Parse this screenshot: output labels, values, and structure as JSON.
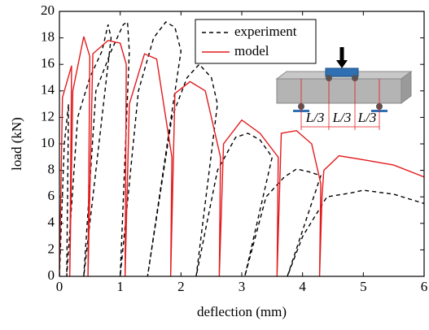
{
  "chart_data": {
    "type": "line",
    "xlabel": "deflection (mm)",
    "ylabel": "load (kN)",
    "xlim": [
      0,
      6
    ],
    "xticks": [
      0,
      1,
      2,
      3,
      4,
      5,
      6
    ],
    "ylim": [
      0,
      20
    ],
    "yticks": [
      0,
      2,
      4,
      6,
      8,
      10,
      12,
      14,
      16,
      18,
      20
    ],
    "legend": "top",
    "annotations": [
      "L/3",
      "L/3",
      "L/3"
    ],
    "series": [
      {
        "name": "experiment",
        "color": "#000000",
        "dash": true,
        "x": [
          0,
          0.08,
          0.15,
          0.12,
          0.3,
          0.5,
          0.7,
          0.8,
          0.85,
          0.4,
          0.6,
          0.85,
          1.05,
          1.12,
          1.15,
          1.0,
          1.3,
          1.55,
          1.75,
          1.9,
          2.0,
          1.45,
          1.85,
          2.1,
          2.3,
          2.5,
          2.6,
          2.25,
          2.6,
          2.9,
          3.1,
          3.3,
          3.5,
          3.05,
          3.4,
          3.7,
          3.9,
          4.1,
          4.3,
          3.75,
          4.0,
          4.4,
          4.8,
          5.0,
          5.5,
          6.0
        ],
        "values": [
          0,
          10,
          13,
          0,
          12,
          15,
          17,
          19,
          18,
          0,
          14,
          17,
          19,
          19.2,
          17,
          0,
          14,
          18,
          19.2,
          18.8,
          17,
          0,
          12,
          15,
          16,
          15,
          13,
          0,
          8,
          10.5,
          10.8,
          10.3,
          9,
          0,
          6,
          7.5,
          8.1,
          7.9,
          7.6,
          0,
          3,
          6,
          6.3,
          6.5,
          6.2,
          5.5
        ]
      },
      {
        "name": "model",
        "color": "#e31a1c",
        "dash": false,
        "x": [
          0,
          0.05,
          0.2,
          0.17,
          0.22,
          0.4,
          0.5,
          0.47,
          0.55,
          0.8,
          1.0,
          1.1,
          1.08,
          1.15,
          1.4,
          1.6,
          1.85,
          1.83,
          1.9,
          2.15,
          2.4,
          2.65,
          2.63,
          2.7,
          3.0,
          3.3,
          3.6,
          3.58,
          3.65,
          3.9,
          4.15,
          4.3,
          4.28,
          4.32,
          4.35,
          4.6,
          5.0,
          5.5,
          6.0
        ],
        "values": [
          0,
          13.5,
          15.9,
          0,
          14,
          18.1,
          16.6,
          0,
          16.8,
          17.8,
          17.6,
          16,
          0,
          13,
          16.8,
          16.4,
          9,
          0,
          13.8,
          14.7,
          14,
          9,
          0,
          10,
          11.8,
          10.8,
          9,
          0,
          10.8,
          11,
          10,
          7,
          0,
          6,
          8,
          9.1,
          8.8,
          8.4,
          7.5
        ]
      }
    ]
  }
}
